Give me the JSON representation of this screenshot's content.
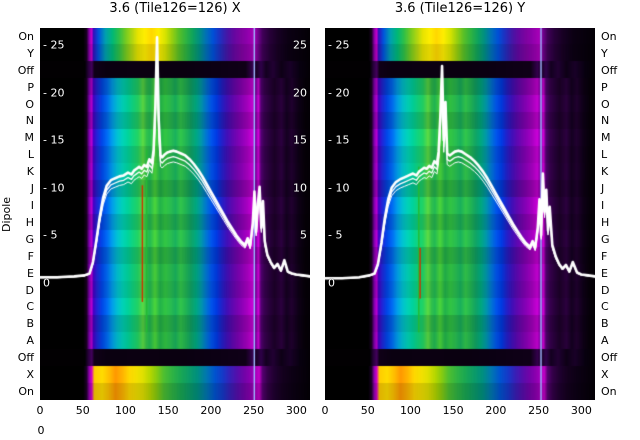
{
  "titles": {
    "left": "3.6 (Tile126=126) X",
    "right": "3.6 (Tile126=126) Y"
  },
  "dipole_label": "Dipole",
  "row_labels": [
    "On",
    "Y",
    "Off",
    "P",
    "O",
    "N",
    "M",
    "L",
    "K",
    "J",
    "I",
    "H",
    "G",
    "F",
    "E",
    "D",
    "C",
    "B",
    "A",
    "Off",
    "X",
    "On"
  ],
  "x_axis": {
    "ticks": [
      "0",
      "50",
      "100",
      "150",
      "200",
      "250",
      "300"
    ],
    "values": [
      0,
      50,
      100,
      150,
      200,
      250,
      300
    ],
    "extra_zero": "0"
  },
  "line_axis": {
    "left_ticks": [
      {
        "v": 25,
        "text": "- 25"
      },
      {
        "v": 20,
        "text": "- 20"
      },
      {
        "v": 15,
        "text": "- 15"
      },
      {
        "v": 10,
        "text": "- 10"
      },
      {
        "v": 5,
        "text": "- 5"
      },
      {
        "v": 0,
        "text": "0"
      }
    ],
    "right_ticks": [
      {
        "v": 25,
        "text": "25"
      },
      {
        "v": 20,
        "text": "20"
      },
      {
        "v": 15,
        "text": "15"
      },
      {
        "v": 10,
        "text": "10"
      },
      {
        "v": 5,
        "text": "5"
      }
    ]
  },
  "heatmap_palettes": {
    "main": [
      [
        0,
        "#000000"
      ],
      [
        50,
        "#000000"
      ],
      [
        54,
        "#1a0022"
      ],
      [
        57,
        "#7a00a8"
      ],
      [
        60,
        "#b400c8"
      ],
      [
        62,
        "#4400bb"
      ],
      [
        66,
        "#2222cc"
      ],
      [
        72,
        "#0044dd"
      ],
      [
        78,
        "#0066e8"
      ],
      [
        84,
        "#0097e0"
      ],
      [
        90,
        "#00b8c8"
      ],
      [
        96,
        "#00c8b0"
      ],
      [
        102,
        "#00c896"
      ],
      [
        108,
        "#10c878"
      ],
      [
        114,
        "#20c860"
      ],
      [
        120,
        "#58d040"
      ],
      [
        124,
        "#30b848"
      ],
      [
        128,
        "#20b050"
      ],
      [
        134,
        "#48cc38"
      ],
      [
        140,
        "#20aa48"
      ],
      [
        146,
        "#30bc40"
      ],
      [
        152,
        "#28b44c"
      ],
      [
        158,
        "#18a858"
      ],
      [
        164,
        "#30bc48"
      ],
      [
        170,
        "#20ac50"
      ],
      [
        176,
        "#109c60"
      ],
      [
        182,
        "#00a07a"
      ],
      [
        188,
        "#0090a0"
      ],
      [
        194,
        "#0070c8"
      ],
      [
        200,
        "#0050e0"
      ],
      [
        206,
        "#0038d8"
      ],
      [
        212,
        "#2020c0"
      ],
      [
        218,
        "#3c10b0"
      ],
      [
        224,
        "#5808a8"
      ],
      [
        230,
        "#7004a8"
      ],
      [
        236,
        "#8800b0"
      ],
      [
        242,
        "#a000b8"
      ],
      [
        248,
        "#c000cc"
      ],
      [
        252,
        "#7800a0"
      ],
      [
        255,
        "#cc00d0"
      ],
      [
        258,
        "#500070"
      ],
      [
        262,
        "#38004e"
      ],
      [
        268,
        "#28003a"
      ],
      [
        274,
        "#1c0028"
      ],
      [
        282,
        "#2a003c"
      ],
      [
        288,
        "#140020"
      ],
      [
        294,
        "#20002e"
      ],
      [
        302,
        "#0e0016"
      ],
      [
        310,
        "#060008"
      ],
      [
        316,
        "#040006"
      ]
    ],
    "hot": [
      [
        0,
        "#000000"
      ],
      [
        50,
        "#000000"
      ],
      [
        54,
        "#1a0022"
      ],
      [
        57,
        "#8800aa"
      ],
      [
        60,
        "#cc00cc"
      ],
      [
        62,
        "#3311bb"
      ],
      [
        68,
        "#0055dd"
      ],
      [
        76,
        "#00a0b0"
      ],
      [
        84,
        "#00b878"
      ],
      [
        92,
        "#30c048"
      ],
      [
        100,
        "#78cc20"
      ],
      [
        108,
        "#b8d810"
      ],
      [
        114,
        "#e8e400"
      ],
      [
        122,
        "#ffee00"
      ],
      [
        130,
        "#ffd800"
      ],
      [
        138,
        "#ffee00"
      ],
      [
        146,
        "#d8e400"
      ],
      [
        154,
        "#98d010"
      ],
      [
        162,
        "#58c028"
      ],
      [
        170,
        "#30b440"
      ],
      [
        178,
        "#10a45c"
      ],
      [
        186,
        "#009083"
      ],
      [
        194,
        "#0070b8"
      ],
      [
        202,
        "#0050d8"
      ],
      [
        210,
        "#2030c0"
      ],
      [
        218,
        "#4418a8"
      ],
      [
        226,
        "#6408a0"
      ],
      [
        234,
        "#7c04a0"
      ],
      [
        242,
        "#9000ac"
      ],
      [
        250,
        "#a800b8"
      ],
      [
        255,
        "#70008c"
      ],
      [
        260,
        "#400058"
      ],
      [
        268,
        "#28003a"
      ],
      [
        278,
        "#180024"
      ],
      [
        290,
        "#0c0014"
      ],
      [
        316,
        "#040006"
      ]
    ],
    "hot2": [
      [
        0,
        "#000000"
      ],
      [
        50,
        "#000000"
      ],
      [
        54,
        "#20002c"
      ],
      [
        57,
        "#9000b0"
      ],
      [
        60,
        "#d400cc"
      ],
      [
        63,
        "#ffcc00"
      ],
      [
        72,
        "#ffdd00"
      ],
      [
        80,
        "#ffc000"
      ],
      [
        88,
        "#ff9800"
      ],
      [
        96,
        "#ffb400"
      ],
      [
        104,
        "#ffd800"
      ],
      [
        112,
        "#f4e000"
      ],
      [
        120,
        "#e0e000"
      ],
      [
        128,
        "#b8d800"
      ],
      [
        136,
        "#88cc10"
      ],
      [
        144,
        "#50c030"
      ],
      [
        154,
        "#30b444"
      ],
      [
        164,
        "#1aa854"
      ],
      [
        174,
        "#0c9c68"
      ],
      [
        184,
        "#009080"
      ],
      [
        194,
        "#0078b0"
      ],
      [
        204,
        "#0054d0"
      ],
      [
        214,
        "#1838c8"
      ],
      [
        222,
        "#3820b8"
      ],
      [
        230,
        "#5410ac"
      ],
      [
        238,
        "#7004a8"
      ],
      [
        246,
        "#8c00b0"
      ],
      [
        252,
        "#a800bc"
      ],
      [
        256,
        "#c400c8"
      ],
      [
        260,
        "#540070"
      ],
      [
        266,
        "#340048"
      ],
      [
        274,
        "#200030"
      ],
      [
        284,
        "#14001e"
      ],
      [
        296,
        "#0c0014"
      ],
      [
        316,
        "#040006"
      ]
    ],
    "dark": [
      [
        0,
        "#020002"
      ],
      [
        52,
        "#020002"
      ],
      [
        56,
        "#28003c"
      ],
      [
        60,
        "#44005e"
      ],
      [
        63,
        "#100018"
      ],
      [
        80,
        "#0a0010"
      ],
      [
        120,
        "#0c0012"
      ],
      [
        160,
        "#0a0010"
      ],
      [
        200,
        "#0c0014"
      ],
      [
        240,
        "#100018"
      ],
      [
        248,
        "#34004c"
      ],
      [
        253,
        "#1c0028"
      ],
      [
        258,
        "#30004a"
      ],
      [
        264,
        "#140020"
      ],
      [
        272,
        "#220034"
      ],
      [
        282,
        "#0e0016"
      ],
      [
        292,
        "#1a0028"
      ],
      [
        304,
        "#080010"
      ],
      [
        316,
        "#040006"
      ]
    ]
  },
  "chart_data": [
    {
      "type": "heatmap",
      "title": "3.6 (Tile126=126) X",
      "xlabel": "",
      "ylabel": "Dipole",
      "x_range": [
        0,
        316
      ],
      "x_ticks": [
        0,
        50,
        100,
        150,
        200,
        250,
        300
      ],
      "rows": [
        "On",
        "Y",
        "Off",
        "P",
        "O",
        "N",
        "M",
        "L",
        "K",
        "J",
        "I",
        "H",
        "G",
        "F",
        "E",
        "D",
        "C",
        "B",
        "A",
        "Off",
        "X",
        "On"
      ],
      "row_styles": [
        {
          "label": "On",
          "palette": "hot",
          "bright": 1.0
        },
        {
          "label": "Y",
          "palette": "hot",
          "bright": 0.9
        },
        {
          "label": "Off",
          "palette": "dark",
          "bright": 1.0
        },
        {
          "label": "P",
          "palette": "main",
          "bright": 0.88
        },
        {
          "label": "O",
          "palette": "main",
          "bright": 1.02
        },
        {
          "label": "N",
          "palette": "main",
          "bright": 0.9
        },
        {
          "label": "M",
          "palette": "main",
          "bright": 1.06
        },
        {
          "label": "L",
          "palette": "main",
          "bright": 0.95
        },
        {
          "label": "K",
          "palette": "main",
          "bright": 1.0
        },
        {
          "label": "J",
          "palette": "main",
          "bright": 0.88
        },
        {
          "label": "I",
          "palette": "main",
          "bright": 1.05
        },
        {
          "label": "H",
          "palette": "main",
          "bright": 0.92
        },
        {
          "label": "G",
          "palette": "main",
          "bright": 1.06
        },
        {
          "label": "F",
          "palette": "main",
          "bright": 0.9
        },
        {
          "label": "E",
          "palette": "main",
          "bright": 1.0
        },
        {
          "label": "D",
          "palette": "main",
          "bright": 0.95
        },
        {
          "label": "C",
          "palette": "main",
          "bright": 1.05
        },
        {
          "label": "B",
          "palette": "main",
          "bright": 0.9
        },
        {
          "label": "A",
          "palette": "main",
          "bright": 0.97
        },
        {
          "label": "Off",
          "palette": "dark",
          "bright": 1.0
        },
        {
          "label": "X",
          "palette": "hot2",
          "bright": 1.0
        },
        {
          "label": "On",
          "palette": "hot2",
          "bright": 0.88
        }
      ],
      "vlines": [
        {
          "x": 119,
          "row0": 9.3,
          "row1": 16.2,
          "color": "#cc3300"
        },
        {
          "x": 124,
          "row0": 7.2,
          "row1": 18.0,
          "color": "#22bb33"
        },
        {
          "x": 250,
          "row0": 0,
          "row1": 22,
          "color": "#9fb8ff"
        }
      ],
      "overlay_line": {
        "name": "bandpass",
        "color": "#ffffff",
        "y_ticks": [
          0,
          5,
          10,
          15,
          20,
          25
        ],
        "x": [
          0,
          20,
          40,
          52,
          58,
          62,
          66,
          70,
          74,
          78,
          83,
          88,
          93,
          98,
          103,
          107,
          110,
          113,
          116,
          119,
          122,
          125,
          128,
          131,
          133,
          135,
          137,
          139,
          141,
          143,
          146,
          149,
          152,
          156,
          160,
          165,
          170,
          175,
          180,
          185,
          190,
          195,
          200,
          205,
          210,
          215,
          220,
          225,
          230,
          235,
          240,
          243,
          246,
          249,
          251,
          253,
          255,
          257,
          259,
          261,
          263,
          266,
          270,
          274,
          278,
          282,
          286,
          290,
          295,
          300,
          308,
          316
        ],
        "y": [
          0.6,
          0.6,
          0.7,
          0.8,
          1.0,
          2.2,
          4.5,
          7.0,
          9.0,
          10.2,
          10.8,
          11.0,
          11.2,
          11.3,
          11.6,
          11.4,
          11.8,
          12.0,
          12.2,
          12.0,
          12.4,
          12.2,
          13.0,
          12.6,
          14.0,
          18.5,
          25.8,
          17.0,
          13.4,
          13.2,
          13.5,
          13.7,
          13.8,
          13.9,
          13.8,
          13.6,
          13.4,
          13.0,
          12.5,
          11.9,
          11.2,
          10.4,
          9.6,
          8.8,
          8.0,
          7.2,
          6.4,
          5.7,
          5.0,
          4.4,
          4.0,
          4.7,
          3.9,
          6.3,
          9.6,
          5.4,
          8.3,
          10.1,
          5.8,
          8.6,
          4.4,
          3.0,
          2.2,
          1.6,
          2.0,
          1.3,
          2.4,
          1.2,
          1.0,
          0.9,
          0.8,
          0.7
        ]
      }
    },
    {
      "type": "heatmap",
      "title": "3.6 (Tile126=126) Y",
      "xlabel": "",
      "ylabel": "Dipole",
      "x_range": [
        0,
        316
      ],
      "x_ticks": [
        0,
        50,
        100,
        150,
        200,
        250,
        300
      ],
      "rows": [
        "On",
        "Y",
        "Off",
        "P",
        "O",
        "N",
        "M",
        "L",
        "K",
        "J",
        "I",
        "H",
        "G",
        "F",
        "E",
        "D",
        "C",
        "B",
        "A",
        "Off",
        "X",
        "On"
      ],
      "row_styles": [
        {
          "label": "On",
          "palette": "hot",
          "bright": 1.0
        },
        {
          "label": "Y",
          "palette": "hot",
          "bright": 0.9
        },
        {
          "label": "Off",
          "palette": "dark",
          "bright": 1.0
        },
        {
          "label": "P",
          "palette": "main",
          "bright": 0.88
        },
        {
          "label": "O",
          "palette": "main",
          "bright": 1.02
        },
        {
          "label": "N",
          "palette": "main",
          "bright": 0.9
        },
        {
          "label": "M",
          "palette": "main",
          "bright": 1.06
        },
        {
          "label": "L",
          "palette": "main",
          "bright": 0.95
        },
        {
          "label": "K",
          "palette": "main",
          "bright": 1.0
        },
        {
          "label": "J",
          "palette": "main",
          "bright": 0.88
        },
        {
          "label": "I",
          "palette": "main",
          "bright": 1.05
        },
        {
          "label": "H",
          "palette": "main",
          "bright": 0.92
        },
        {
          "label": "G",
          "palette": "main",
          "bright": 1.06
        },
        {
          "label": "F",
          "palette": "main",
          "bright": 0.9
        },
        {
          "label": "E",
          "palette": "main",
          "bright": 1.0
        },
        {
          "label": "D",
          "palette": "main",
          "bright": 0.95
        },
        {
          "label": "C",
          "palette": "main",
          "bright": 1.05
        },
        {
          "label": "B",
          "palette": "main",
          "bright": 0.9
        },
        {
          "label": "A",
          "palette": "main",
          "bright": 0.97
        },
        {
          "label": "Off",
          "palette": "dark",
          "bright": 1.0
        },
        {
          "label": "X",
          "palette": "hot2",
          "bright": 1.0
        },
        {
          "label": "On",
          "palette": "hot2",
          "bright": 0.88
        }
      ],
      "vlines": [
        {
          "x": 109,
          "row0": 8.2,
          "row1": 18.0,
          "color": "#22bb33"
        },
        {
          "x": 110.5,
          "row0": 13.0,
          "row1": 16.0,
          "color": "#cc3300"
        },
        {
          "x": 252,
          "row0": 0,
          "row1": 22,
          "color": "#9fb8ff"
        }
      ],
      "overlay_line": {
        "name": "bandpass",
        "color": "#ffffff",
        "y_ticks": [
          0,
          5,
          10,
          15,
          20,
          25
        ],
        "x": [
          0,
          20,
          40,
          52,
          58,
          62,
          66,
          70,
          74,
          78,
          83,
          88,
          93,
          98,
          103,
          107,
          110,
          113,
          116,
          119,
          122,
          125,
          128,
          131,
          133,
          135,
          137,
          139,
          141,
          143,
          146,
          149,
          152,
          156,
          160,
          165,
          170,
          175,
          180,
          185,
          190,
          195,
          200,
          205,
          210,
          215,
          220,
          225,
          230,
          235,
          240,
          243,
          246,
          249,
          251,
          253,
          255,
          257,
          259,
          261,
          263,
          266,
          270,
          274,
          278,
          282,
          286,
          290,
          295,
          300,
          308,
          316
        ],
        "y": [
          0.5,
          0.5,
          0.6,
          0.8,
          1.0,
          2.0,
          4.2,
          6.8,
          8.8,
          10.0,
          10.6,
          10.9,
          11.1,
          11.3,
          11.5,
          11.3,
          11.7,
          11.9,
          12.1,
          12.0,
          12.3,
          12.1,
          12.8,
          12.5,
          13.8,
          17.5,
          22.8,
          15.0,
          19.0,
          13.6,
          13.4,
          13.6,
          13.8,
          13.9,
          13.8,
          13.5,
          13.2,
          12.8,
          12.3,
          11.7,
          11.0,
          10.2,
          9.4,
          8.6,
          7.8,
          7.0,
          6.2,
          5.5,
          4.8,
          4.2,
          3.8,
          4.4,
          3.7,
          5.8,
          8.8,
          5.0,
          11.5,
          7.5,
          9.8,
          5.5,
          8.0,
          4.0,
          2.8,
          2.0,
          1.5,
          1.9,
          1.2,
          2.2,
          1.1,
          0.9,
          0.8,
          0.7
        ]
      }
    }
  ]
}
